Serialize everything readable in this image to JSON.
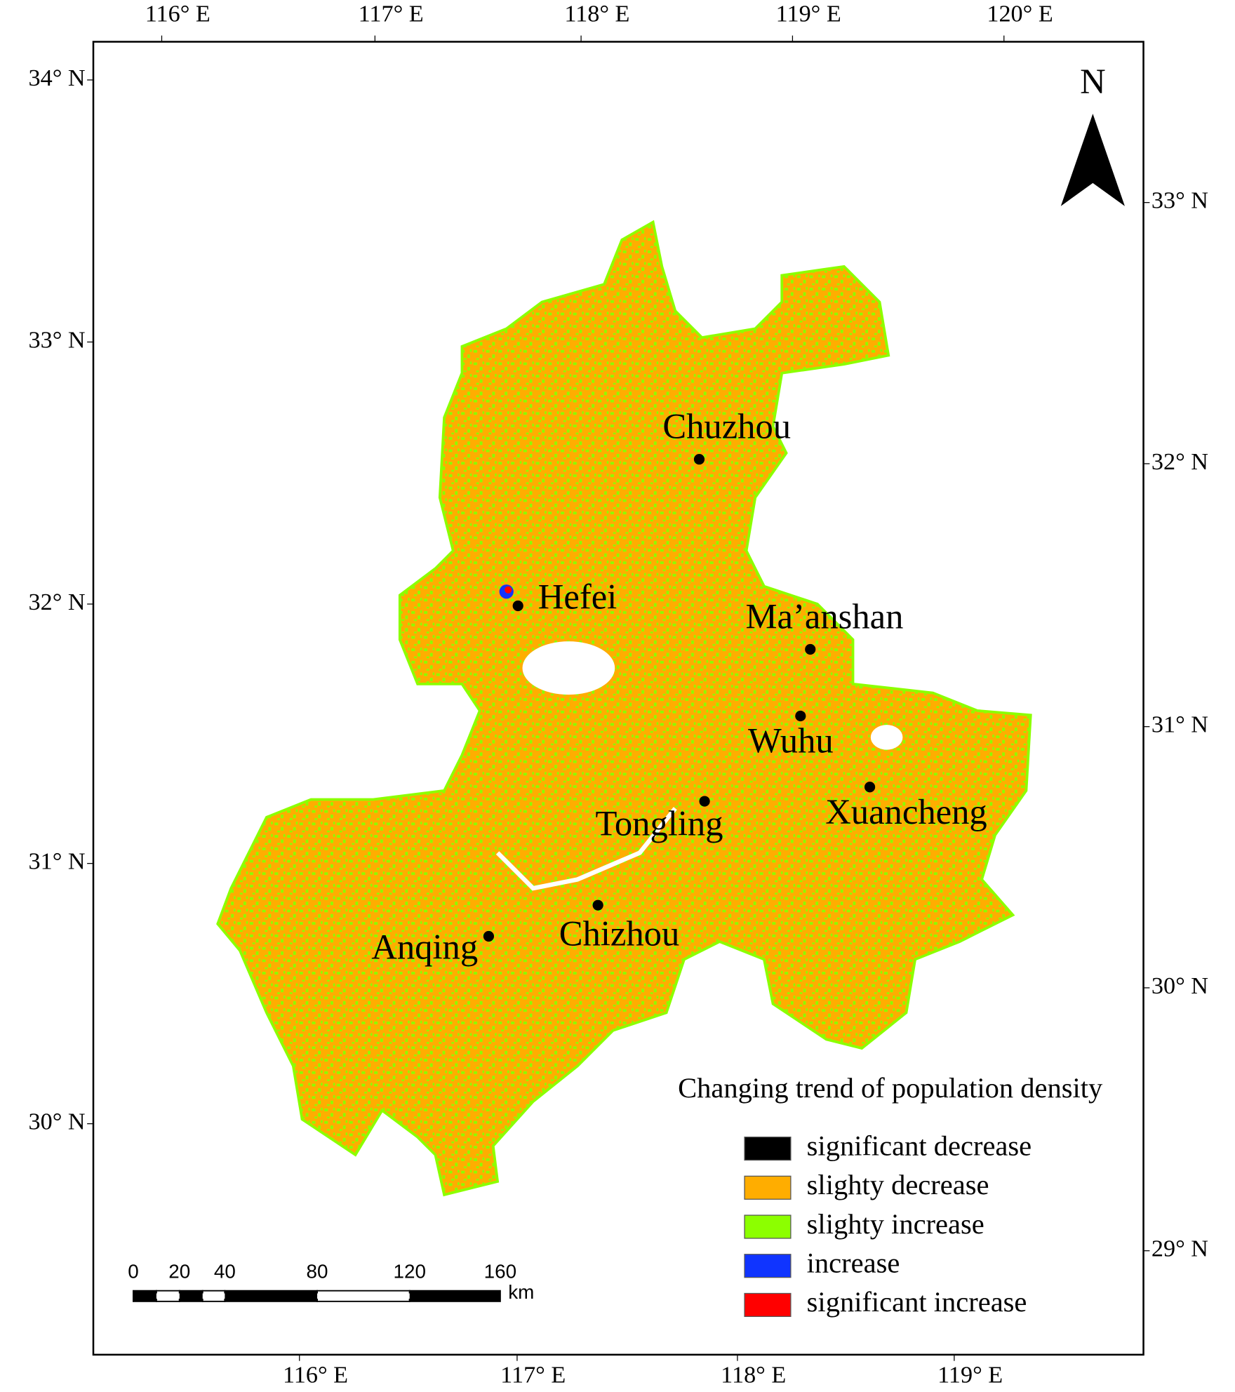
{
  "map": {
    "north": "N",
    "lon_top": [
      "116° E",
      "117° E",
      "118° E",
      "119° E",
      "120° E"
    ],
    "lon_bottom": [
      "116° E",
      "117° E",
      "118° E",
      "119° E"
    ],
    "lat_left": [
      "34° N",
      "33° N",
      "32° N",
      "31° N",
      "30° N"
    ],
    "lat_right": [
      "33° N",
      "32° N",
      "31° N",
      "30° N",
      "29° N"
    ],
    "cities": [
      "Chuzhou",
      "Hefei",
      "Ma’anshan",
      "Wuhu",
      "Tongling",
      "Xuancheng",
      "Chizhou",
      "Anqing"
    ],
    "legend": {
      "title": "Changing trend of population density",
      "items": [
        {
          "label": "significant decrease",
          "color": "#000000"
        },
        {
          "label": "slighty decrease",
          "color": "#ffad00"
        },
        {
          "label": "slighty increase",
          "color": "#8cff00"
        },
        {
          "label": "increase",
          "color": "#1034ff"
        },
        {
          "label": "significant increase",
          "color": "#ff0000"
        }
      ]
    },
    "scale_bar": {
      "labels": [
        "0",
        "20",
        "40",
        "80",
        "120",
        "160"
      ],
      "unit": "km"
    }
  }
}
